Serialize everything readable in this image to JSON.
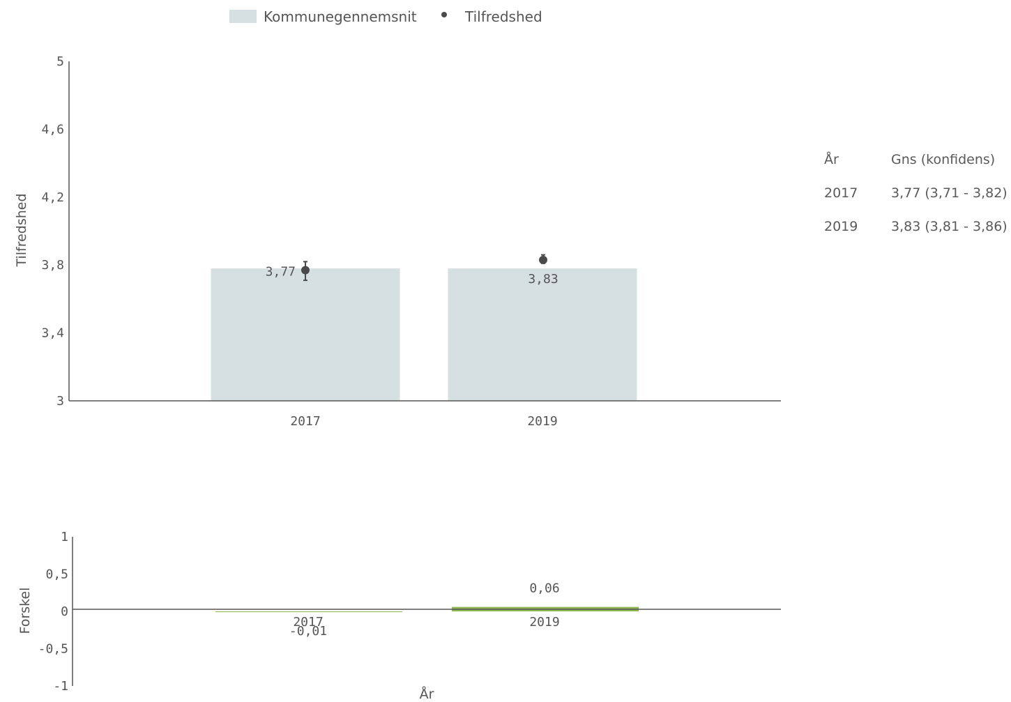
{
  "legend": {
    "bar_label": "Kommunegennemsnit",
    "point_label": "Tilfredshed",
    "bar_color": "#d6dfe1",
    "point_color": "#4a4a4a"
  },
  "table": {
    "headers": [
      "År",
      "Gns (konfidens)"
    ],
    "rows": [
      {
        "year": "2017",
        "value": "3,77 (3,71 - 3,82)"
      },
      {
        "year": "2019",
        "value": "3,83 (3,81 - 3,86)"
      }
    ]
  },
  "chart_data": [
    {
      "type": "bar",
      "ylabel": "Tilfredshed",
      "categories": [
        "2017",
        "2019"
      ],
      "ylim": [
        3,
        5
      ],
      "yticks": [
        3,
        3.4,
        3.8,
        4.2,
        4.6,
        5
      ],
      "ytick_labels": [
        "3",
        "3,4",
        "3,8",
        "4,2",
        "4,6",
        "5"
      ],
      "series": [
        {
          "name": "Kommunegennemsnit",
          "kind": "bar",
          "values": [
            3.78,
            3.78
          ],
          "color": "#d6dfe1"
        },
        {
          "name": "Tilfredshed",
          "kind": "point",
          "values": [
            3.77,
            3.83
          ],
          "labels": [
            "3,77",
            "3,83"
          ],
          "ci_low": [
            3.71,
            3.81
          ],
          "ci_high": [
            3.82,
            3.86
          ],
          "color": "#4a4a4a"
        }
      ],
      "grid": false
    },
    {
      "type": "bar",
      "ylabel": "Forskel",
      "xlabel": "År",
      "categories": [
        "2017",
        "2019"
      ],
      "ylim": [
        -1,
        1
      ],
      "yticks": [
        -1,
        -0.5,
        0,
        0.5,
        1
      ],
      "ytick_labels": [
        "-1",
        "-0,5",
        "0",
        "0,5",
        "1"
      ],
      "series": [
        {
          "name": "Forskel",
          "values": [
            -0.01,
            0.06
          ],
          "labels": [
            "-0,01",
            "0,06"
          ],
          "colors": [
            "#8fb855",
            "#8fb855"
          ]
        }
      ],
      "grid": false
    }
  ]
}
